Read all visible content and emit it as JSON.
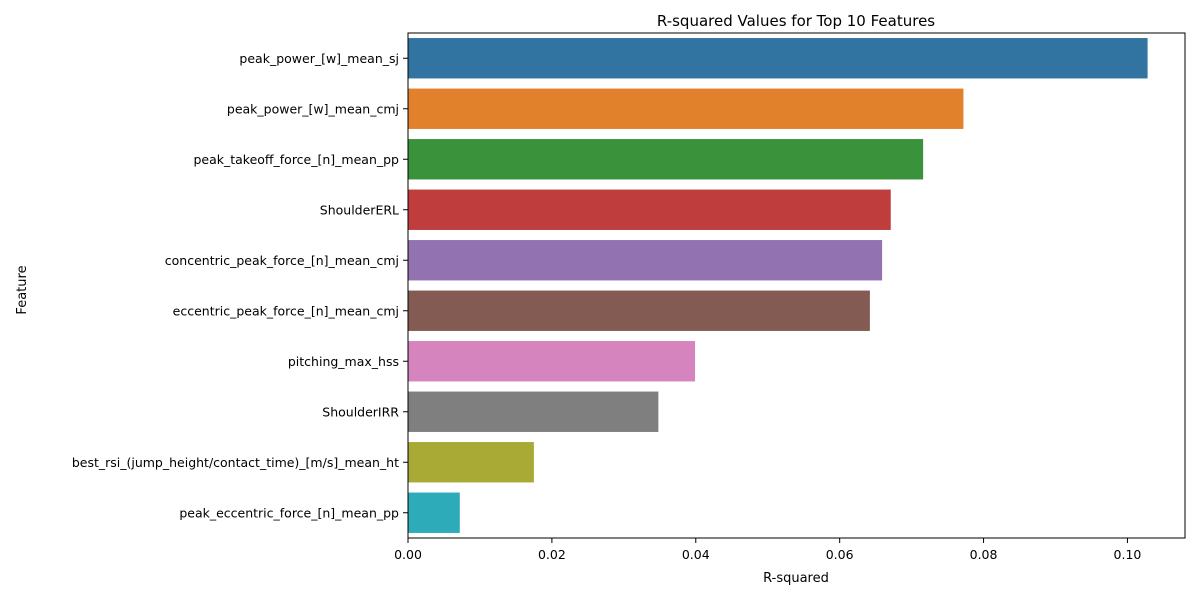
{
  "chart_data": {
    "type": "bar",
    "orientation": "horizontal",
    "title": "R-squared Values for Top 10 Features",
    "xlabel": "R-squared",
    "ylabel": "Feature",
    "xlim": [
      0,
      0.108
    ],
    "xticks": [
      0.0,
      0.02,
      0.04,
      0.06,
      0.08,
      0.1
    ],
    "xtick_labels": [
      "0.00",
      "0.02",
      "0.04",
      "0.06",
      "0.08",
      "0.10"
    ],
    "grid": false,
    "categories": [
      "peak_power_[w]_mean_sj",
      "peak_power_[w]_mean_cmj",
      "peak_takeoff_force_[n]_mean_pp",
      "ShoulderERL",
      "concentric_peak_force_[n]_mean_cmj",
      "eccentric_peak_force_[n]_mean_cmj",
      "pitching_max_hss",
      "ShoulderIRR",
      "best_rsi_(jump_height/contact_time)_[m/s]_mean_ht",
      "peak_eccentric_force_[n]_mean_pp"
    ],
    "values": [
      0.1028,
      0.0772,
      0.0716,
      0.0671,
      0.0659,
      0.0642,
      0.0399,
      0.0348,
      0.0175,
      0.0072
    ],
    "colors": [
      "#3274a1",
      "#e1812c",
      "#3a923a",
      "#c03d3e",
      "#9372b2",
      "#845b53",
      "#d684bd",
      "#7f7f7f",
      "#a9aa35",
      "#2eabb8"
    ]
  }
}
